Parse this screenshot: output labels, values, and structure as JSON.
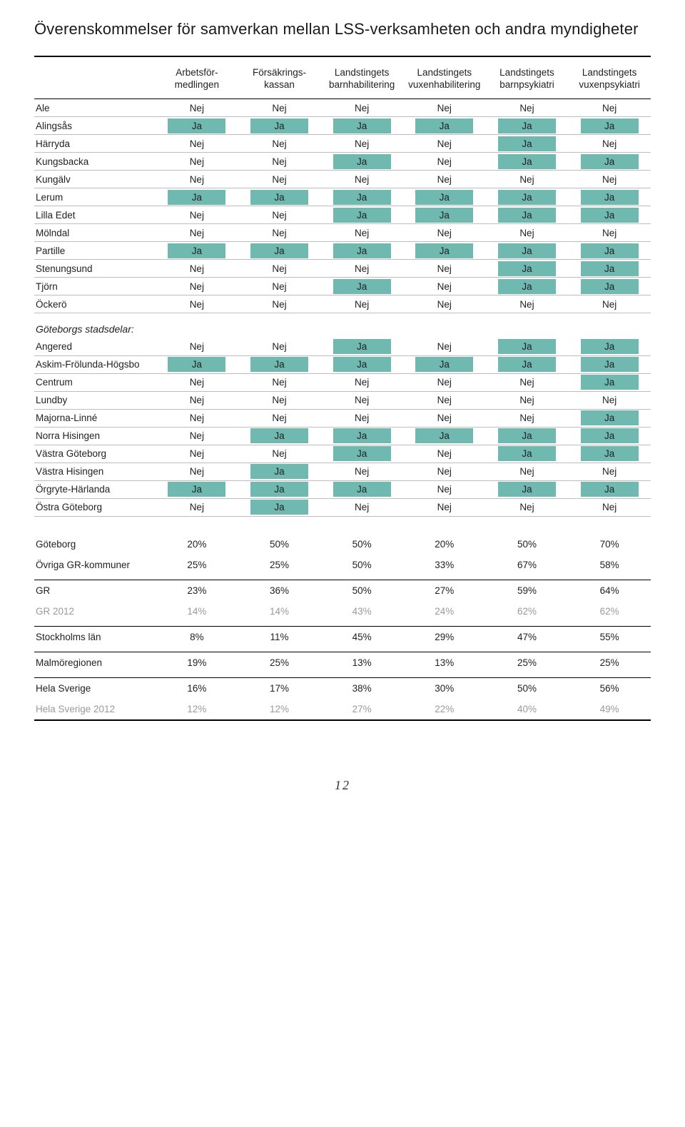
{
  "title": "Överenskommelser för samverkan mellan LSS-verksamheten och andra myndigheter",
  "page_number": "12",
  "colors": {
    "ja_bg": "#6fb9b1",
    "grey_text": "#9a9a9a"
  },
  "columns": [
    [
      "Arbetsför-",
      "medlingen"
    ],
    [
      "Försäkrings-",
      "kassan"
    ],
    [
      "Landstingets",
      "barnhabilitering"
    ],
    [
      "Landstingets",
      "vuxenhabilitering"
    ],
    [
      "Landstingets",
      "barnpsykiatri"
    ],
    [
      "Landstingets",
      "vuxenpsykiatri"
    ]
  ],
  "municipalities": [
    {
      "label": "Ale",
      "v": [
        "Nej",
        "Nej",
        "Nej",
        "Nej",
        "Nej",
        "Nej"
      ]
    },
    {
      "label": "Alingsås",
      "v": [
        "Ja",
        "Ja",
        "Ja",
        "Ja",
        "Ja",
        "Ja"
      ]
    },
    {
      "label": "Härryda",
      "v": [
        "Nej",
        "Nej",
        "Nej",
        "Nej",
        "Ja",
        "Nej"
      ]
    },
    {
      "label": "Kungsbacka",
      "v": [
        "Nej",
        "Nej",
        "Ja",
        "Nej",
        "Ja",
        "Ja"
      ]
    },
    {
      "label": "Kungälv",
      "v": [
        "Nej",
        "Nej",
        "Nej",
        "Nej",
        "Nej",
        "Nej"
      ]
    },
    {
      "label": "Lerum",
      "v": [
        "Ja",
        "Ja",
        "Ja",
        "Ja",
        "Ja",
        "Ja"
      ]
    },
    {
      "label": "Lilla Edet",
      "v": [
        "Nej",
        "Nej",
        "Ja",
        "Ja",
        "Ja",
        "Ja"
      ]
    },
    {
      "label": "Mölndal",
      "v": [
        "Nej",
        "Nej",
        "Nej",
        "Nej",
        "Nej",
        "Nej"
      ]
    },
    {
      "label": "Partille",
      "v": [
        "Ja",
        "Ja",
        "Ja",
        "Ja",
        "Ja",
        "Ja"
      ]
    },
    {
      "label": "Stenungsund",
      "v": [
        "Nej",
        "Nej",
        "Nej",
        "Nej",
        "Ja",
        "Ja"
      ]
    },
    {
      "label": "Tjörn",
      "v": [
        "Nej",
        "Nej",
        "Ja",
        "Nej",
        "Ja",
        "Ja"
      ]
    },
    {
      "label": "Öckerö",
      "v": [
        "Nej",
        "Nej",
        "Nej",
        "Nej",
        "Nej",
        "Nej"
      ]
    }
  ],
  "districts_heading": "Göteborgs stadsdelar:",
  "districts": [
    {
      "label": "Angered",
      "v": [
        "Nej",
        "Nej",
        "Ja",
        "Nej",
        "Ja",
        "Ja"
      ]
    },
    {
      "label": "Askim-Frölunda-Högsbo",
      "v": [
        "Ja",
        "Ja",
        "Ja",
        "Ja",
        "Ja",
        "Ja"
      ]
    },
    {
      "label": "Centrum",
      "v": [
        "Nej",
        "Nej",
        "Nej",
        "Nej",
        "Nej",
        "Ja"
      ]
    },
    {
      "label": "Lundby",
      "v": [
        "Nej",
        "Nej",
        "Nej",
        "Nej",
        "Nej",
        "Nej"
      ]
    },
    {
      "label": "Majorna-Linné",
      "v": [
        "Nej",
        "Nej",
        "Nej",
        "Nej",
        "Nej",
        "Ja"
      ]
    },
    {
      "label": "Norra Hisingen",
      "v": [
        "Nej",
        "Ja",
        "Ja",
        "Ja",
        "Ja",
        "Ja"
      ]
    },
    {
      "label": "Västra Göteborg",
      "v": [
        "Nej",
        "Nej",
        "Ja",
        "Nej",
        "Ja",
        "Ja"
      ]
    },
    {
      "label": "Västra Hisingen",
      "v": [
        "Nej",
        "Ja",
        "Nej",
        "Nej",
        "Nej",
        "Nej"
      ]
    },
    {
      "label": "Örgryte-Härlanda",
      "v": [
        "Ja",
        "Ja",
        "Ja",
        "Nej",
        "Ja",
        "Ja"
      ]
    },
    {
      "label": "Östra Göteborg",
      "v": [
        "Nej",
        "Ja",
        "Nej",
        "Nej",
        "Nej",
        "Nej"
      ]
    }
  ],
  "summary": [
    {
      "group": 0,
      "grey": false,
      "label": "Göteborg",
      "v": [
        "20%",
        "50%",
        "50%",
        "20%",
        "50%",
        "70%"
      ]
    },
    {
      "group": 0,
      "grey": false,
      "label": "Övriga GR-kommuner",
      "v": [
        "25%",
        "25%",
        "50%",
        "33%",
        "67%",
        "58%"
      ]
    },
    {
      "group": 1,
      "grey": false,
      "label": "GR",
      "v": [
        "23%",
        "36%",
        "50%",
        "27%",
        "59%",
        "64%"
      ]
    },
    {
      "group": 1,
      "grey": true,
      "label": "GR 2012",
      "v": [
        "14%",
        "14%",
        "43%",
        "24%",
        "62%",
        "62%"
      ]
    },
    {
      "group": 2,
      "grey": false,
      "label": "Stockholms län",
      "v": [
        "8%",
        "11%",
        "45%",
        "29%",
        "47%",
        "55%"
      ]
    },
    {
      "group": 3,
      "grey": false,
      "label": "Malmöregionen",
      "v": [
        "19%",
        "25%",
        "13%",
        "13%",
        "25%",
        "25%"
      ]
    },
    {
      "group": 4,
      "grey": false,
      "label": "Hela Sverige",
      "v": [
        "16%",
        "17%",
        "38%",
        "30%",
        "50%",
        "56%"
      ]
    },
    {
      "group": 4,
      "grey": true,
      "label": "Hela Sverige 2012",
      "v": [
        "12%",
        "12%",
        "27%",
        "22%",
        "40%",
        "49%"
      ]
    }
  ]
}
